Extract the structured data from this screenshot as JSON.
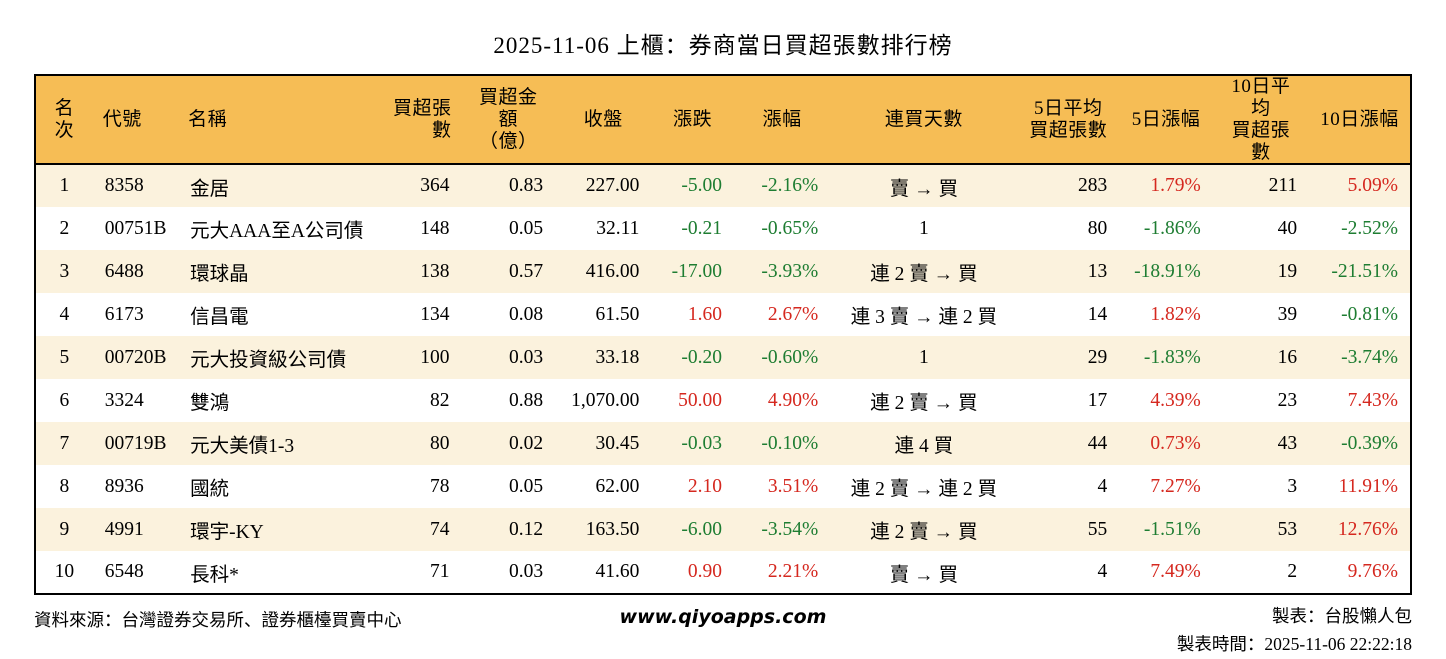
{
  "title": "2025-11-06 上櫃：券商當日買超張數排行榜",
  "colors": {
    "header_bg": "#F6BD55",
    "row_alt": "#FBF2DD",
    "up": "#D5281F",
    "down": "#1E7D32",
    "border": "#000000"
  },
  "table": {
    "columns": [
      {
        "key": "rank",
        "lines": [
          "名次"
        ],
        "halign": "center",
        "align": "center",
        "colored": false
      },
      {
        "key": "code",
        "lines": [
          "代號"
        ],
        "halign": "left",
        "align": "left",
        "colored": false
      },
      {
        "key": "name",
        "lines": [
          "名稱"
        ],
        "halign": "left",
        "align": "left",
        "colored": false
      },
      {
        "key": "net_buy_lots",
        "lines": [
          "買超張數"
        ],
        "halign": "right",
        "align": "right",
        "colored": false
      },
      {
        "key": "net_buy_amount",
        "lines": [
          "買超金額",
          "（億）"
        ],
        "halign": "center",
        "align": "right",
        "colored": false
      },
      {
        "key": "close",
        "lines": [
          "收盤"
        ],
        "halign": "center",
        "align": "right",
        "colored": false
      },
      {
        "key": "change",
        "lines": [
          "漲跌"
        ],
        "halign": "center",
        "align": "right",
        "colored": true
      },
      {
        "key": "change_pct",
        "lines": [
          "漲幅"
        ],
        "halign": "center",
        "align": "right",
        "colored": true
      },
      {
        "key": "streak",
        "lines": [
          "連買天數"
        ],
        "halign": "center",
        "align": "center",
        "colored": false
      },
      {
        "key": "avg5_lots",
        "lines": [
          "5日平均",
          "買超張數"
        ],
        "halign": "center",
        "align": "right",
        "colored": false
      },
      {
        "key": "pct5",
        "lines": [
          "5日漲幅"
        ],
        "halign": "center",
        "align": "right",
        "colored": true
      },
      {
        "key": "avg10_lots",
        "lines": [
          "10日平均",
          "買超張數"
        ],
        "halign": "center",
        "align": "right",
        "colored": false
      },
      {
        "key": "pct10",
        "lines": [
          "10日漲幅"
        ],
        "halign": "center",
        "align": "right",
        "colored": true
      }
    ]
  },
  "chart_data": {
    "type": "table",
    "title": "2025-11-06 上櫃：券商當日買超張數排行榜",
    "columns": [
      "名次",
      "代號",
      "名稱",
      "買超張數",
      "買超金額（億）",
      "收盤",
      "漲跌",
      "漲幅",
      "連買天數",
      "5日平均買超張數",
      "5日漲幅",
      "10日平均買超張數",
      "10日漲幅"
    ],
    "rows": [
      [
        "1",
        "8358",
        "金居",
        "364",
        "0.83",
        "227.00",
        "-5.00",
        "-2.16%",
        "賣 → 買",
        "283",
        "1.79%",
        "211",
        "5.09%"
      ],
      [
        "2",
        "00751B",
        "元大AAA至A公司債",
        "148",
        "0.05",
        "32.11",
        "-0.21",
        "-0.65%",
        "1",
        "80",
        "-1.86%",
        "40",
        "-2.52%"
      ],
      [
        "3",
        "6488",
        "環球晶",
        "138",
        "0.57",
        "416.00",
        "-17.00",
        "-3.93%",
        "連 2 賣 → 買",
        "13",
        "-18.91%",
        "19",
        "-21.51%"
      ],
      [
        "4",
        "6173",
        "信昌電",
        "134",
        "0.08",
        "61.50",
        "1.60",
        "2.67%",
        "連 3 賣 → 連 2 買",
        "14",
        "1.82%",
        "39",
        "-0.81%"
      ],
      [
        "5",
        "00720B",
        "元大投資級公司債",
        "100",
        "0.03",
        "33.18",
        "-0.20",
        "-0.60%",
        "1",
        "29",
        "-1.83%",
        "16",
        "-3.74%"
      ],
      [
        "6",
        "3324",
        "雙鴻",
        "82",
        "0.88",
        "1,070.00",
        "50.00",
        "4.90%",
        "連 2 賣 → 買",
        "17",
        "4.39%",
        "23",
        "7.43%"
      ],
      [
        "7",
        "00719B",
        "元大美債1-3",
        "80",
        "0.02",
        "30.45",
        "-0.03",
        "-0.10%",
        "連 4 買",
        "44",
        "0.73%",
        "43",
        "-0.39%"
      ],
      [
        "8",
        "8936",
        "國統",
        "78",
        "0.05",
        "62.00",
        "2.10",
        "3.51%",
        "連 2 賣 → 連 2 買",
        "4",
        "7.27%",
        "3",
        "11.91%"
      ],
      [
        "9",
        "4991",
        "環宇-KY",
        "74",
        "0.12",
        "163.50",
        "-6.00",
        "-3.54%",
        "連 2 賣 → 買",
        "55",
        "-1.51%",
        "53",
        "12.76%"
      ],
      [
        "10",
        "6548",
        "長科*",
        "71",
        "0.03",
        "41.60",
        "0.90",
        "2.21%",
        "賣 → 買",
        "4",
        "7.49%",
        "2",
        "9.76%"
      ]
    ]
  },
  "footer": {
    "source": "資料來源：台灣證券交易所、證券櫃檯買賣中心",
    "site": "www.qiyoapps.com",
    "maker": "製表：台股懶人包",
    "made_time": "製表時間：2025-11-06 22:22:18"
  }
}
